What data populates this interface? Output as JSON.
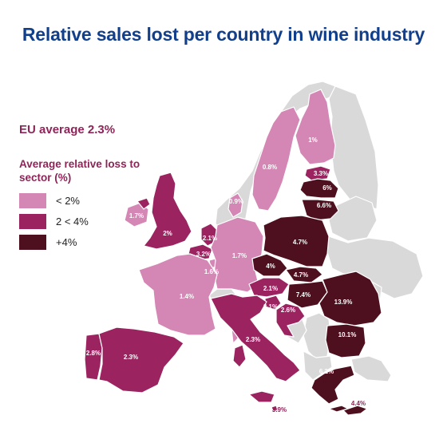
{
  "title": "Relative sales lost per country in wine industry",
  "eu_average": "EU average 2.3%",
  "legend": {
    "title": "Average relative loss to sector (%)",
    "items": [
      {
        "label": "< 2%",
        "color": "#d486b4"
      },
      {
        "label": "2 < 4%",
        "color": "#9b2360"
      },
      {
        "label": "+4%",
        "color": "#4e0f1e"
      }
    ]
  },
  "colors": {
    "non_eu": "#d9d9d9",
    "border": "#ffffff"
  },
  "countries": {
    "finland": "1%",
    "sweden": "0.8%",
    "estonia": "3.3%",
    "latvia": "6%",
    "lithuania": "6.6%",
    "denmark": "0.9%",
    "ireland": "1.7%",
    "uk": "2%",
    "netherlands": "2.1%",
    "belgium": "3.2%",
    "luxembourg": "1.6%",
    "germany": "1.7%",
    "poland": "4.7%",
    "czech": "4%",
    "slovakia": "4.7%",
    "austria": "2.1%",
    "hungary": "7.4%",
    "romania": "13.9%",
    "france": "1.4%",
    "slovenia": "3.1%",
    "croatia": "2.6%",
    "bulgaria": "10.1%",
    "italy": "2.3%",
    "portugal": "2.8%",
    "spain": "2.3%",
    "greece": "6.2%",
    "malta": "3.9%",
    "cyprus": "4.4%"
  }
}
